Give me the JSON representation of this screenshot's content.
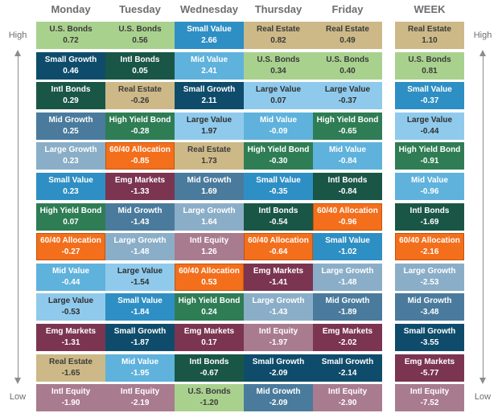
{
  "chart_data": {
    "type": "table",
    "title": "",
    "columns": [
      "Monday",
      "Tuesday",
      "Wednesday",
      "Thursday",
      "Friday",
      "WEEK"
    ],
    "axis": {
      "top_label": "High",
      "bottom_label": "Low"
    },
    "asset_colors": {
      "U.S. Bonds": {
        "bg": "#a9d18e",
        "fg": "#3b3b3b"
      },
      "Small Growth": {
        "bg": "#0f4c6b",
        "fg": "#ffffff"
      },
      "Intl Bonds": {
        "bg": "#1a5646",
        "fg": "#ffffff"
      },
      "Mid Growth": {
        "bg": "#4a7b9d",
        "fg": "#ffffff"
      },
      "Large Growth": {
        "bg": "#8aaec7",
        "fg": "#ffffff"
      },
      "Small Value": {
        "bg": "#2e8fc4",
        "fg": "#ffffff"
      },
      "High Yield Bond": {
        "bg": "#2f7d55",
        "fg": "#ffffff"
      },
      "60/40 Allocation": {
        "bg": "#f36f1c",
        "fg": "#ffffff"
      },
      "Mid Value": {
        "bg": "#5fb2dc",
        "fg": "#ffffff"
      },
      "Large Value": {
        "bg": "#8fcaec",
        "fg": "#2f2f2f"
      },
      "Emg Markets": {
        "bg": "#7b3550",
        "fg": "#ffffff"
      },
      "Real Estate": {
        "bg": "#cdb987",
        "fg": "#3b3b3b"
      },
      "Intl Equity": {
        "bg": "#a97b8e",
        "fg": "#ffffff"
      }
    },
    "series": [
      {
        "column": "Monday",
        "cells": [
          {
            "name": "U.S. Bonds",
            "value": "0.72"
          },
          {
            "name": "Small Growth",
            "value": "0.46"
          },
          {
            "name": "Intl Bonds",
            "value": "0.29"
          },
          {
            "name": "Mid Growth",
            "value": "0.25"
          },
          {
            "name": "Large Growth",
            "value": "0.23"
          },
          {
            "name": "Small Value",
            "value": "0.23"
          },
          {
            "name": "High Yield Bond",
            "value": "0.07"
          },
          {
            "name": "60/40 Allocation",
            "value": "-0.27"
          },
          {
            "name": "Mid Value",
            "value": "-0.44"
          },
          {
            "name": "Large Value",
            "value": "-0.53"
          },
          {
            "name": "Emg Markets",
            "value": "-1.31"
          },
          {
            "name": "Real Estate",
            "value": "-1.65"
          },
          {
            "name": "Intl Equity",
            "value": "-1.90"
          }
        ]
      },
      {
        "column": "Tuesday",
        "cells": [
          {
            "name": "U.S. Bonds",
            "value": "0.56"
          },
          {
            "name": "Intl Bonds",
            "value": "0.05"
          },
          {
            "name": "Real Estate",
            "value": "-0.26"
          },
          {
            "name": "High Yield Bond",
            "value": "-0.28"
          },
          {
            "name": "60/40 Allocation",
            "value": "-0.85"
          },
          {
            "name": "Emg Markets",
            "value": "-1.33"
          },
          {
            "name": "Mid Growth",
            "value": "-1.43"
          },
          {
            "name": "Large Growth",
            "value": "-1.48"
          },
          {
            "name": "Large Value",
            "value": "-1.54"
          },
          {
            "name": "Small Value",
            "value": "-1.84"
          },
          {
            "name": "Small Growth",
            "value": "-1.87"
          },
          {
            "name": "Mid Value",
            "value": "-1.95"
          },
          {
            "name": "Intl Equity",
            "value": "-2.19"
          }
        ]
      },
      {
        "column": "Wednesday",
        "cells": [
          {
            "name": "Small Value",
            "value": "2.66"
          },
          {
            "name": "Mid Value",
            "value": "2.41"
          },
          {
            "name": "Small Growth",
            "value": "2.11"
          },
          {
            "name": "Large Value",
            "value": "1.97"
          },
          {
            "name": "Real Estate",
            "value": "1.73"
          },
          {
            "name": "Mid Growth",
            "value": "1.69"
          },
          {
            "name": "Large Growth",
            "value": "1.64"
          },
          {
            "name": "Intl Equity",
            "value": "1.26"
          },
          {
            "name": "60/40 Allocation",
            "value": "0.53"
          },
          {
            "name": "High Yield Bond",
            "value": "0.24"
          },
          {
            "name": "Emg Markets",
            "value": "0.17"
          },
          {
            "name": "Intl Bonds",
            "value": "-0.67"
          },
          {
            "name": "U.S. Bonds",
            "value": "-1.20"
          }
        ]
      },
      {
        "column": "Thursday",
        "cells": [
          {
            "name": "Real Estate",
            "value": "0.82"
          },
          {
            "name": "U.S. Bonds",
            "value": "0.34"
          },
          {
            "name": "Large Value",
            "value": "0.07"
          },
          {
            "name": "Mid Value",
            "value": "-0.09"
          },
          {
            "name": "High Yield Bond",
            "value": "-0.30"
          },
          {
            "name": "Small Value",
            "value": "-0.35"
          },
          {
            "name": "Intl Bonds",
            "value": "-0.54"
          },
          {
            "name": "60/40 Allocation",
            "value": "-0.64"
          },
          {
            "name": "Emg Markets",
            "value": "-1.41"
          },
          {
            "name": "Large Growth",
            "value": "-1.43"
          },
          {
            "name": "Intl Equity",
            "value": "-1.97"
          },
          {
            "name": "Small Growth",
            "value": "-2.09"
          },
          {
            "name": "Mid Growth",
            "value": "-2.09"
          }
        ]
      },
      {
        "column": "Friday",
        "cells": [
          {
            "name": "Real Estate",
            "value": "0.49"
          },
          {
            "name": "U.S. Bonds",
            "value": "0.40"
          },
          {
            "name": "Large Value",
            "value": "-0.37"
          },
          {
            "name": "High Yield Bond",
            "value": "-0.65"
          },
          {
            "name": "Mid Value",
            "value": "-0.84"
          },
          {
            "name": "Intl Bonds",
            "value": "-0.84"
          },
          {
            "name": "60/40 Allocation",
            "value": "-0.96"
          },
          {
            "name": "Small Value",
            "value": "-1.02"
          },
          {
            "name": "Large Growth",
            "value": "-1.48"
          },
          {
            "name": "Mid Growth",
            "value": "-1.89"
          },
          {
            "name": "Emg Markets",
            "value": "-2.02"
          },
          {
            "name": "Small Growth",
            "value": "-2.14"
          },
          {
            "name": "Intl Equity",
            "value": "-2.90"
          }
        ]
      },
      {
        "column": "WEEK",
        "cells": [
          {
            "name": "Real Estate",
            "value": "1.10"
          },
          {
            "name": "U.S. Bonds",
            "value": "0.81"
          },
          {
            "name": "Small Value",
            "value": "-0.37"
          },
          {
            "name": "Large Value",
            "value": "-0.44"
          },
          {
            "name": "High Yield Bond",
            "value": "-0.91"
          },
          {
            "name": "Mid Value",
            "value": "-0.96"
          },
          {
            "name": "Intl Bonds",
            "value": "-1.69"
          },
          {
            "name": "60/40 Allocation",
            "value": "-2.16"
          },
          {
            "name": "Large Growth",
            "value": "-2.53"
          },
          {
            "name": "Mid Growth",
            "value": "-3.48"
          },
          {
            "name": "Small Growth",
            "value": "-3.55"
          },
          {
            "name": "Emg Markets",
            "value": "-5.77"
          },
          {
            "name": "Intl Equity",
            "value": "-7.52"
          }
        ]
      }
    ]
  }
}
